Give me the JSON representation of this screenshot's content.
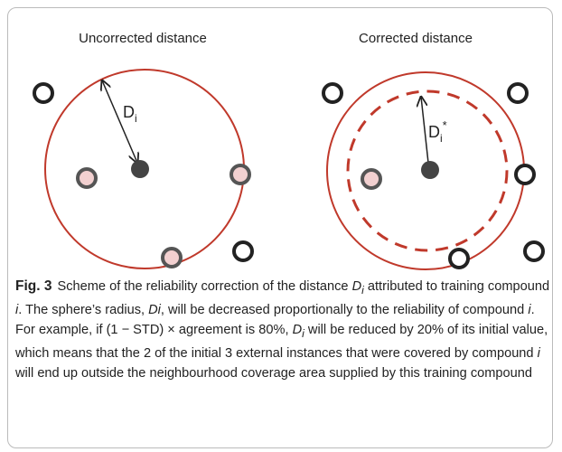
{
  "figure": {
    "panels": [
      {
        "title": "Uncorrected distance",
        "label": "D",
        "label_sub": "i"
      },
      {
        "title": "Corrected distance",
        "label": "D",
        "label_sub": "i",
        "label_sup": "*"
      }
    ]
  },
  "caption": {
    "label": "Fig. 3",
    "parts": [
      "Scheme of the reliability correction of the distance ",
      "D",
      "i",
      " attributed to training compound ",
      "i",
      ". The sphere’s radius, ",
      "Di",
      ", will be decreased proportionally to the reliability of compound ",
      "i",
      ". For example, if (1 − STD) × agreement is 80%, ",
      "D",
      "i",
      " will be reduced by 20% of its initial value, which means that the 2 of the initial 3 external instances that were covered by compound ",
      "i",
      " will end up outside the neighbourhood coverage area supplied by this training compound"
    ]
  }
}
